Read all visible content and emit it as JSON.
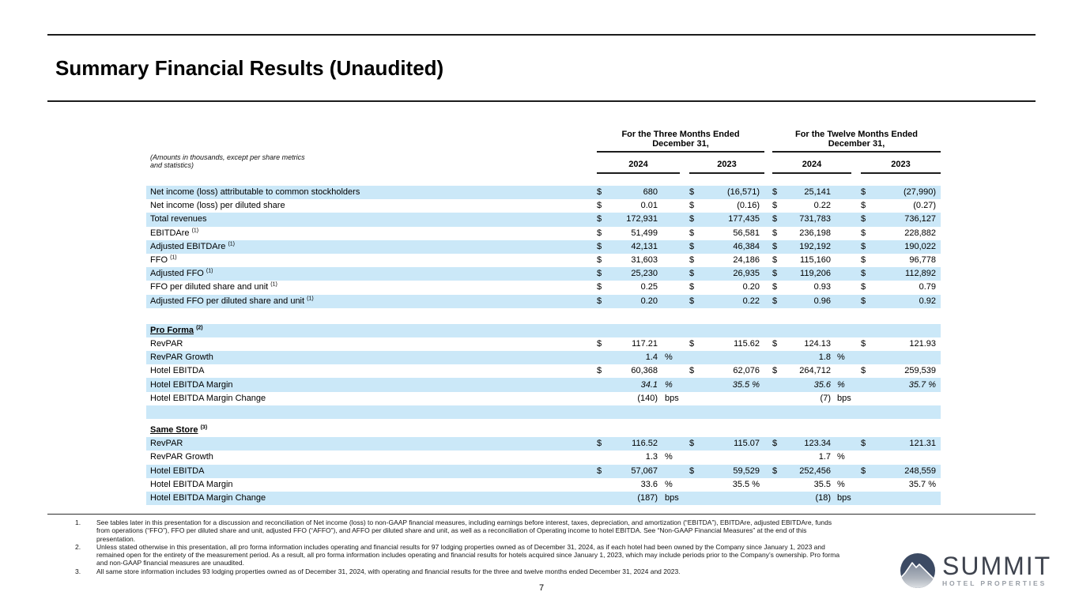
{
  "page": {
    "title": "Summary Financial Results (Unaudited)",
    "page_number": "7"
  },
  "colors": {
    "row_shade": "#cbe8f8",
    "rule": "#1c1c1c",
    "logo_navy": "#3c4a63",
    "logo_text": "#3e434e",
    "logo_gray": "#989ea6"
  },
  "table": {
    "amounts_note": "(Amounts in thousands, except per share metrics and statistics)",
    "header_groups": [
      {
        "line1": "For the Three Months Ended",
        "line2": "December 31,",
        "years": [
          "2024",
          "2023"
        ]
      },
      {
        "line1": "For the Twelve Months Ended",
        "line2": "December 31,",
        "years": [
          "2024",
          "2023"
        ]
      }
    ],
    "rows": [
      {
        "type": "data",
        "shade": true,
        "label": "Net income (loss) attributable to common stockholders",
        "cells": [
          [
            "$",
            "680",
            ""
          ],
          [
            "$",
            "(16,571)",
            ""
          ],
          [
            "$",
            "25,141",
            ""
          ],
          [
            "$",
            "(27,990)",
            ""
          ]
        ]
      },
      {
        "type": "data",
        "shade": false,
        "label": "Net income (loss) per diluted share",
        "cells": [
          [
            "$",
            "0.01",
            ""
          ],
          [
            "$",
            "(0.16)",
            ""
          ],
          [
            "$",
            "0.22",
            ""
          ],
          [
            "$",
            "(0.27)",
            ""
          ]
        ]
      },
      {
        "type": "data",
        "shade": true,
        "label": "Total revenues",
        "cells": [
          [
            "$",
            "172,931",
            ""
          ],
          [
            "$",
            "177,435",
            ""
          ],
          [
            "$",
            "731,783",
            ""
          ],
          [
            "$",
            "736,127",
            ""
          ]
        ]
      },
      {
        "type": "data",
        "shade": false,
        "label": "EBITDAre",
        "sup": "(1)",
        "cells": [
          [
            "$",
            "51,499",
            ""
          ],
          [
            "$",
            "56,581",
            ""
          ],
          [
            "$",
            "236,198",
            ""
          ],
          [
            "$",
            "228,882",
            ""
          ]
        ]
      },
      {
        "type": "data",
        "shade": true,
        "label": "Adjusted EBITDAre",
        "sup": "(1)",
        "cells": [
          [
            "$",
            "42,131",
            ""
          ],
          [
            "$",
            "46,384",
            ""
          ],
          [
            "$",
            "192,192",
            ""
          ],
          [
            "$",
            "190,022",
            ""
          ]
        ]
      },
      {
        "type": "data",
        "shade": false,
        "label": "FFO",
        "sup": "(1)",
        "cells": [
          [
            "$",
            "31,603",
            ""
          ],
          [
            "$",
            "24,186",
            ""
          ],
          [
            "$",
            "115,160",
            ""
          ],
          [
            "$",
            "96,778",
            ""
          ]
        ]
      },
      {
        "type": "data",
        "shade": true,
        "label": "Adjusted FFO",
        "sup": "(1)",
        "cells": [
          [
            "$",
            "25,230",
            ""
          ],
          [
            "$",
            "26,935",
            ""
          ],
          [
            "$",
            "119,206",
            ""
          ],
          [
            "$",
            "112,892",
            ""
          ]
        ]
      },
      {
        "type": "data",
        "shade": false,
        "label": "FFO per diluted share and unit",
        "sup": "(1)",
        "cells": [
          [
            "$",
            "0.25",
            ""
          ],
          [
            "$",
            "0.20",
            ""
          ],
          [
            "$",
            "0.93",
            ""
          ],
          [
            "$",
            "0.79",
            ""
          ]
        ]
      },
      {
        "type": "data",
        "shade": true,
        "label": "Adjusted FFO per diluted share and unit",
        "sup": "(1)",
        "cells": [
          [
            "$",
            "0.20",
            ""
          ],
          [
            "$",
            "0.22",
            ""
          ],
          [
            "$",
            "0.96",
            ""
          ],
          [
            "$",
            "0.92",
            ""
          ]
        ]
      },
      {
        "type": "gap",
        "h": 20
      },
      {
        "type": "section",
        "shade": true,
        "label": "Pro Forma",
        "sup": "(2)"
      },
      {
        "type": "data",
        "shade": false,
        "label": "RevPAR",
        "cells": [
          [
            "$",
            "117.21",
            ""
          ],
          [
            "$",
            "115.62",
            ""
          ],
          [
            "$",
            "124.13",
            ""
          ],
          [
            "$",
            "121.93",
            ""
          ]
        ]
      },
      {
        "type": "data",
        "shade": true,
        "label": "RevPAR Growth",
        "cells": [
          [
            "",
            "1.4",
            "%"
          ],
          [
            "",
            "",
            ""
          ],
          [
            "",
            "1.8",
            "%"
          ],
          [
            "",
            "",
            ""
          ]
        ]
      },
      {
        "type": "data",
        "shade": false,
        "label": "Hotel EBITDA",
        "cells": [
          [
            "$",
            "60,368",
            ""
          ],
          [
            "$",
            "62,076",
            ""
          ],
          [
            "$",
            "264,712",
            ""
          ],
          [
            "$",
            "259,539",
            ""
          ]
        ]
      },
      {
        "type": "data",
        "shade": true,
        "italic": true,
        "label": "Hotel EBITDA Margin",
        "cells": [
          [
            "",
            "34.1",
            "%"
          ],
          [
            "",
            "35.5 %",
            ""
          ],
          [
            "",
            "35.6",
            "%"
          ],
          [
            "",
            "35.7 %",
            ""
          ]
        ]
      },
      {
        "type": "data",
        "shade": false,
        "label": "Hotel EBITDA Margin Change",
        "cells": [
          [
            "",
            "(140)",
            "bps"
          ],
          [
            "",
            "",
            ""
          ],
          [
            "",
            "(7)",
            "bps"
          ],
          [
            "",
            "",
            ""
          ]
        ]
      },
      {
        "type": "blank",
        "shade": true
      },
      {
        "type": "gap",
        "h": 6
      },
      {
        "type": "section",
        "shade": false,
        "label": "Same Store",
        "sup": "(3)"
      },
      {
        "type": "data",
        "shade": true,
        "label": "RevPAR",
        "cells": [
          [
            "$",
            "116.52",
            ""
          ],
          [
            "$",
            "115.07",
            ""
          ],
          [
            "$",
            "123.34",
            ""
          ],
          [
            "$",
            "121.31",
            ""
          ]
        ]
      },
      {
        "type": "data",
        "shade": false,
        "label": "RevPAR Growth",
        "cells": [
          [
            "",
            "1.3",
            "%"
          ],
          [
            "",
            "",
            ""
          ],
          [
            "",
            "1.7",
            "%"
          ],
          [
            "",
            "",
            ""
          ]
        ]
      },
      {
        "type": "data",
        "shade": true,
        "label": "Hotel EBITDA",
        "cells": [
          [
            "$",
            "57,067",
            ""
          ],
          [
            "$",
            "59,529",
            ""
          ],
          [
            "$",
            "252,456",
            ""
          ],
          [
            "$",
            "248,559",
            ""
          ]
        ]
      },
      {
        "type": "data",
        "shade": false,
        "label": "Hotel EBITDA Margin",
        "cells": [
          [
            "",
            "33.6",
            "%"
          ],
          [
            "",
            "35.5 %",
            ""
          ],
          [
            "",
            "35.5",
            "%"
          ],
          [
            "",
            "35.7 %",
            ""
          ]
        ]
      },
      {
        "type": "data",
        "shade": true,
        "label": "Hotel EBITDA Margin Change",
        "cells": [
          [
            "",
            "(187)",
            "bps"
          ],
          [
            "",
            "",
            ""
          ],
          [
            "",
            "(18)",
            "bps"
          ],
          [
            "",
            "",
            ""
          ]
        ]
      }
    ]
  },
  "footnotes": [
    {
      "num": "1.",
      "text": "See tables later in this presentation for a discussion and reconciliation of Net income (loss) to non-GAAP financial measures, including earnings before interest, taxes, depreciation, and amortization (“EBITDA”), EBITDAre, adjusted EBITDAre, funds from operations (“FFO”), FFO per diluted share and unit, adjusted FFO (“AFFO”), and AFFO per diluted share and unit, as well as a reconciliation of Operating income to hotel EBITDA. See “Non-GAAP Financial Measures” at the end of this presentation."
    },
    {
      "num": "2.",
      "text": "Unless stated otherwise in this presentation, all pro forma information includes operating and financial results for 97 lodging properties owned as of December 31, 2024, as if each hotel had been owned by the Company since January 1, 2023 and remained open for the entirety of the measurement period. As a result, all pro forma information includes operating and financial results for hotels acquired since January 1, 2023, which may include periods prior to the Company’s ownership. Pro forma and non-GAAP financial measures are unaudited."
    },
    {
      "num": "3.",
      "text": "All same store information includes 93 lodging properties owned as of December 31, 2024, with operating and financial results for the three and twelve months ended December 31, 2024 and 2023."
    }
  ],
  "logo": {
    "name": "SUMMIT",
    "subtitle": "HOTEL PROPERTIES"
  }
}
